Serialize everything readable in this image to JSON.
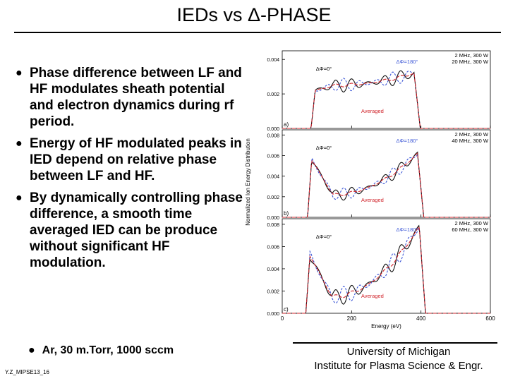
{
  "slide": {
    "title": "IEDs vs Δ-PHASE",
    "bullets": [
      "Phase difference between LF and HF modulates sheath potential and electron dynamics during rf period.",
      "Energy of HF modulated peaks in IED depend on relative phase between LF and HF.",
      "By dynamically controlling phase difference, a smooth time averaged IED can be produce without significant HF modulation."
    ],
    "bullet_symbol": "●",
    "sub_bullet": "Ar, 30 m.Torr, 1000 sccm",
    "footer_id": "Y.Z_MIPSE13_16",
    "affiliation_line1": "University of Michigan",
    "affiliation_line2": "Institute for Plasma Science & Engr."
  },
  "chart_data": {
    "type": "line",
    "xlabel": "Energy (eV)",
    "ylabel": "Normalized Ion Energy Distribution",
    "xlim": [
      0,
      600
    ],
    "x_ticks": [
      "0",
      "200",
      "400",
      "600"
    ],
    "colors": {
      "phase0": "#111111",
      "phase180": "#3a55d6",
      "averaged": "#d0242b"
    },
    "panels": [
      {
        "label": "a)",
        "y_ticks": [
          "0.000",
          "0.002",
          "0.004"
        ],
        "ylim": [
          0,
          0.0045
        ],
        "legend": [
          "2 MHz, 300 W",
          "20 MHz, 300 W"
        ],
        "annotations": {
          "phase180": "ΔΦ=180°",
          "phase0": "ΔΦ=0°",
          "averaged": "Averaged"
        },
        "low_edge": 95,
        "high_edge": 380,
        "levels": {
          "start": 0.0022,
          "mid": 0.0025,
          "peak": 0.0032
        },
        "ripple": 0.0004
      },
      {
        "label": "b)",
        "y_ticks": [
          "0.000",
          "0.002",
          "0.004",
          "0.006",
          "0.008"
        ],
        "ylim": [
          0,
          0.0085
        ],
        "legend": [
          "2 MHz, 300 W",
          "40 MHz, 300 W"
        ],
        "annotations": {
          "phase180": "ΔΦ=180°",
          "phase0": "ΔΦ=0°",
          "averaged": "Averaged"
        },
        "low_edge": 85,
        "high_edge": 390,
        "levels": {
          "start": 0.0056,
          "mid": 0.0022,
          "peak": 0.0062
        },
        "ripple": 0.0006
      },
      {
        "label": "c)",
        "y_ticks": [
          "0.000",
          "0.002",
          "0.004",
          "0.006",
          "0.008"
        ],
        "ylim": [
          0,
          0.0085
        ],
        "legend": [
          "2 MHz, 300 W",
          "60 MHz, 300 W"
        ],
        "annotations": {
          "phase180": "ΔΦ=180°",
          "phase0": "ΔΦ=0°",
          "averaged": "Averaged"
        },
        "low_edge": 80,
        "high_edge": 395,
        "levels": {
          "start": 0.0052,
          "mid": 0.0015,
          "peak": 0.0078
        },
        "ripple": 0.0008
      }
    ]
  }
}
